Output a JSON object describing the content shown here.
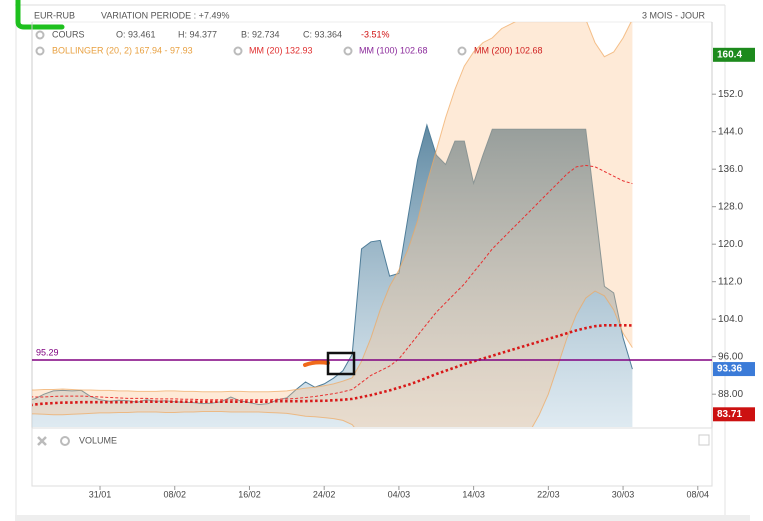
{
  "chart_data": {
    "type": "line",
    "title": "EUR-RUB",
    "subtitle": "VARIATION PERIODE : +7.49%",
    "period": "3 MOIS - JOUR",
    "quote": [
      "O: 93.461",
      "H: 94.377",
      "B: 92.734",
      "C: 93.364",
      "-3.51%"
    ],
    "volume_label": "VOLUME",
    "categories": [
      null,
      null,
      null,
      null,
      null,
      null,
      null,
      null,
      "31/01",
      null,
      null,
      null,
      null,
      null,
      null,
      null,
      "08/02",
      null,
      null,
      null,
      null,
      null,
      null,
      null,
      "16/02",
      null,
      null,
      null,
      null,
      null,
      null,
      null,
      "24/02",
      null,
      null,
      null,
      null,
      null,
      null,
      null,
      "04/03",
      null,
      null,
      null,
      null,
      null,
      null,
      null,
      "14/03",
      null,
      null,
      null,
      null,
      null,
      null,
      null,
      "22/03",
      null,
      null,
      null,
      null,
      null,
      null,
      null,
      "30/03",
      null,
      null,
      null,
      null,
      null,
      null,
      null,
      "08/04",
      null
    ],
    "ylim": [
      81,
      167.4
    ],
    "yticks": [
      {
        "value": 88,
        "label": "88.00"
      },
      {
        "value": 96,
        "label": "96.00"
      },
      {
        "value": 104,
        "label": "104.0"
      },
      {
        "value": 112,
        "label": "112.0"
      },
      {
        "value": 120,
        "label": "120.0"
      },
      {
        "value": 128,
        "label": "128.0"
      },
      {
        "value": 136,
        "label": "136.0"
      },
      {
        "value": 144,
        "label": "144.0"
      },
      {
        "value": 152,
        "label": "152.0"
      }
    ],
    "grid": false,
    "series": [
      {
        "name": "COURS",
        "color": "#4f7d99",
        "style": "area",
        "values": [
          86.5,
          87,
          88,
          88.7,
          88.8,
          88.7,
          88.8,
          87.5,
          86.8,
          86.5,
          86.7,
          86.6,
          86.3,
          86.8,
          86.5,
          86.6,
          86.4,
          86.3,
          86.2,
          86,
          86.1,
          86.4,
          87.4,
          86.6,
          86.2,
          85.8,
          86,
          86.8,
          87.2,
          89,
          90.6,
          89.5,
          90.2,
          91.4,
          93,
          96.5,
          119,
          120.5,
          120.8,
          113.2,
          113.8,
          126,
          138,
          145.4,
          139,
          137,
          142,
          142,
          133,
          139,
          144.5,
          144.5,
          144.5,
          144.5,
          144.5,
          144.5,
          144.5,
          144.5,
          144.5,
          144.5,
          144.5,
          128,
          111,
          109.6,
          100,
          93.36,
          null,
          null,
          null,
          null,
          null,
          null,
          null,
          null
        ]
      },
      {
        "name": "BOLLINGER (20, 2) 167.94 - 97.93",
        "color": "#f0a860",
        "style": "band",
        "upper": [
          88.9,
          88.9,
          89,
          89,
          89.1,
          89,
          88.9,
          88.9,
          88.8,
          88.8,
          88.7,
          88.7,
          88.6,
          88.6,
          88.6,
          88.7,
          88.7,
          88.6,
          88.6,
          88.5,
          88.5,
          88.5,
          88.6,
          88.6,
          88.5,
          88.5,
          88.5,
          88.6,
          88.7,
          89,
          89.3,
          89.5,
          89.8,
          90.2,
          90.8,
          91.5,
          95,
          100,
          106,
          111,
          114.5,
          119,
          125,
          133,
          140,
          147,
          153,
          158,
          161,
          163,
          164,
          166,
          167,
          168,
          168,
          168,
          168,
          168,
          168,
          168,
          168,
          163,
          160,
          161,
          164,
          168,
          null,
          null,
          null,
          null,
          null,
          null,
          null,
          null
        ],
        "lower": [
          83.8,
          83.8,
          83.7,
          83.6,
          83.6,
          83.7,
          83.8,
          83.9,
          84,
          84,
          84.1,
          84.1,
          84.2,
          84.2,
          84.2,
          84.1,
          84.1,
          84.2,
          84.2,
          84.3,
          84.3,
          84.3,
          84.2,
          84.2,
          84.2,
          84.2,
          84.1,
          84,
          83.9,
          83.6,
          83.3,
          83.2,
          83,
          82.8,
          82.4,
          81.5,
          79,
          76,
          72,
          68,
          66,
          64,
          62,
          60,
          60,
          60,
          60,
          61,
          62,
          64,
          67,
          70,
          74,
          77,
          80,
          83.5,
          88,
          94,
          100,
          105,
          108.5,
          110,
          109,
          106,
          101,
          97.93,
          null,
          null,
          null,
          null,
          null,
          null,
          null,
          null
        ]
      },
      {
        "name": "MM (20) 132.93",
        "color": "#e83030",
        "style": "dashed",
        "values": [
          87.5,
          87.4,
          87.4,
          87.5,
          87.6,
          87.6,
          87.6,
          87.5,
          87.4,
          87.3,
          87.2,
          87.1,
          87.1,
          87.1,
          87,
          87,
          87,
          86.9,
          86.9,
          86.8,
          86.8,
          86.8,
          86.8,
          86.8,
          86.8,
          86.8,
          86.8,
          86.9,
          87,
          87.1,
          87.3,
          87.5,
          87.8,
          88.1,
          88.5,
          89,
          90.5,
          92,
          93,
          94,
          95.5,
          98,
          100.5,
          103,
          105.5,
          107.5,
          109.5,
          111.5,
          114,
          116.5,
          119,
          121,
          123,
          125,
          127,
          129,
          131,
          133,
          135,
          136.5,
          136.8,
          136.5,
          135.5,
          134.5,
          133.5,
          132.93,
          null,
          null,
          null,
          null,
          null,
          null,
          null,
          null
        ]
      },
      {
        "name": "MM (100) 102.68",
        "color": "#d81818",
        "style": "dotted",
        "values": [
          85.5,
          85.8,
          86,
          86.1,
          86.2,
          86.2,
          86.3,
          86.3,
          86.3,
          86.3,
          86.3,
          86.3,
          86.4,
          86.4,
          86.4,
          86.4,
          86.4,
          86.4,
          86.4,
          86.4,
          86.4,
          86.4,
          86.4,
          86.4,
          86.4,
          86.4,
          86.4,
          86.5,
          86.5,
          86.5,
          86.5,
          86.6,
          86.6,
          86.7,
          86.8,
          87,
          87.4,
          87.8,
          88.3,
          88.8,
          89.4,
          90,
          90.7,
          91.5,
          92.3,
          93,
          93.7,
          94.4,
          95,
          95.6,
          96.2,
          96.8,
          97.4,
          98,
          98.6,
          99.2,
          99.8,
          100.4,
          101,
          101.6,
          102.1,
          102.5,
          102.7,
          102.7,
          102.7,
          102.68,
          null,
          null,
          null,
          null,
          null,
          null,
          null,
          null
        ]
      },
      {
        "name": "MM (200) 102.68",
        "color": "#d02020"
      }
    ],
    "hline": {
      "value": 95.29,
      "color": "#800080"
    },
    "price_labels": [
      {
        "value": 160.4,
        "color": "#1d8a1d"
      },
      {
        "value": 93.36,
        "color": "#3b7bd8"
      },
      {
        "value": 83.71,
        "color": "#cc1111"
      }
    ]
  }
}
